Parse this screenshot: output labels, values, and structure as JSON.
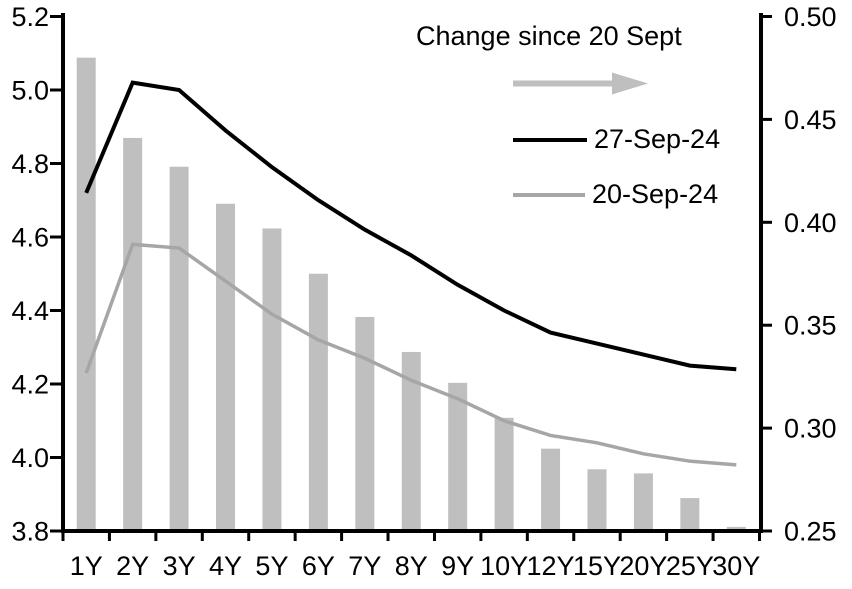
{
  "window": {
    "background": "#ffffff"
  },
  "chart_data": {
    "type": "combo",
    "categories": [
      "1Y",
      "2Y",
      "3Y",
      "4Y",
      "5Y",
      "6Y",
      "7Y",
      "8Y",
      "9Y",
      "10Y",
      "12Y",
      "15Y",
      "20Y",
      "25Y",
      "30Y"
    ],
    "series": [
      {
        "name": "27-Sep-24",
        "type": "line",
        "axis": "left",
        "color": "#000000",
        "values": [
          4.72,
          5.02,
          5.0,
          4.89,
          4.79,
          4.7,
          4.62,
          4.55,
          4.47,
          4.4,
          4.34,
          4.31,
          4.28,
          4.25,
          4.24
        ]
      },
      {
        "name": "20-Sep-24",
        "type": "line",
        "axis": "left",
        "color": "#a6a6a6",
        "values": [
          4.23,
          4.58,
          4.57,
          4.48,
          4.39,
          4.32,
          4.27,
          4.21,
          4.16,
          4.1,
          4.06,
          4.04,
          4.01,
          3.99,
          3.98
        ]
      },
      {
        "name": "Change since 20 Sept",
        "type": "bar",
        "axis": "right",
        "color": "#bfbfbf",
        "values": [
          0.48,
          0.441,
          0.427,
          0.409,
          0.397,
          0.375,
          0.354,
          0.337,
          0.322,
          0.305,
          0.29,
          0.28,
          0.278,
          0.266,
          0.252
        ]
      }
    ],
    "left_axis": {
      "min": 3.8,
      "max": 5.2,
      "tick_labels": [
        "5.2",
        "5.0",
        "4.8",
        "4.6",
        "4.4",
        "4.2",
        "4.0",
        "3.8"
      ]
    },
    "right_axis": {
      "min": 0.25,
      "max": 0.5,
      "tick_labels": [
        "0.50",
        "0.45",
        "0.40",
        "0.35",
        "0.30",
        "0.25"
      ]
    },
    "legend": {
      "title": "Change since 20 Sept",
      "arrow_direction": "right",
      "arrow_color": "#bfbfbf",
      "entries": [
        {
          "label": "27-Sep-24",
          "color": "#000000"
        },
        {
          "label": "20-Sep-24",
          "color": "#a6a6a6"
        }
      ]
    },
    "grid": "off",
    "axis_color": "#000000",
    "text_color": "#000000"
  }
}
